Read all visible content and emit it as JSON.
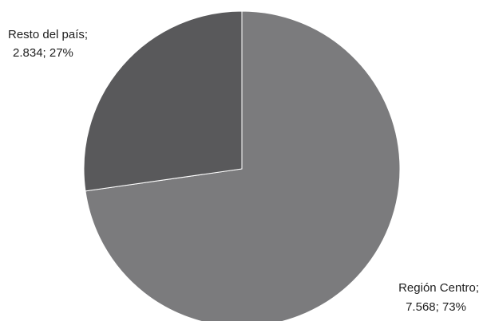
{
  "chart_data": {
    "type": "pie",
    "slices": [
      {
        "label": "Región Centro",
        "value": 7568,
        "percent": 73,
        "color": "#7b7b7d",
        "label_line1": "Región Centro;",
        "label_line2": "7.568; 73%"
      },
      {
        "label": "Resto del país",
        "value": 2834,
        "percent": 27,
        "color": "#59595b",
        "label_line1": "Resto del país;",
        "label_line2": "2.834; 27%"
      }
    ],
    "start_angle_degrees": 0,
    "direction": "clockwise"
  }
}
